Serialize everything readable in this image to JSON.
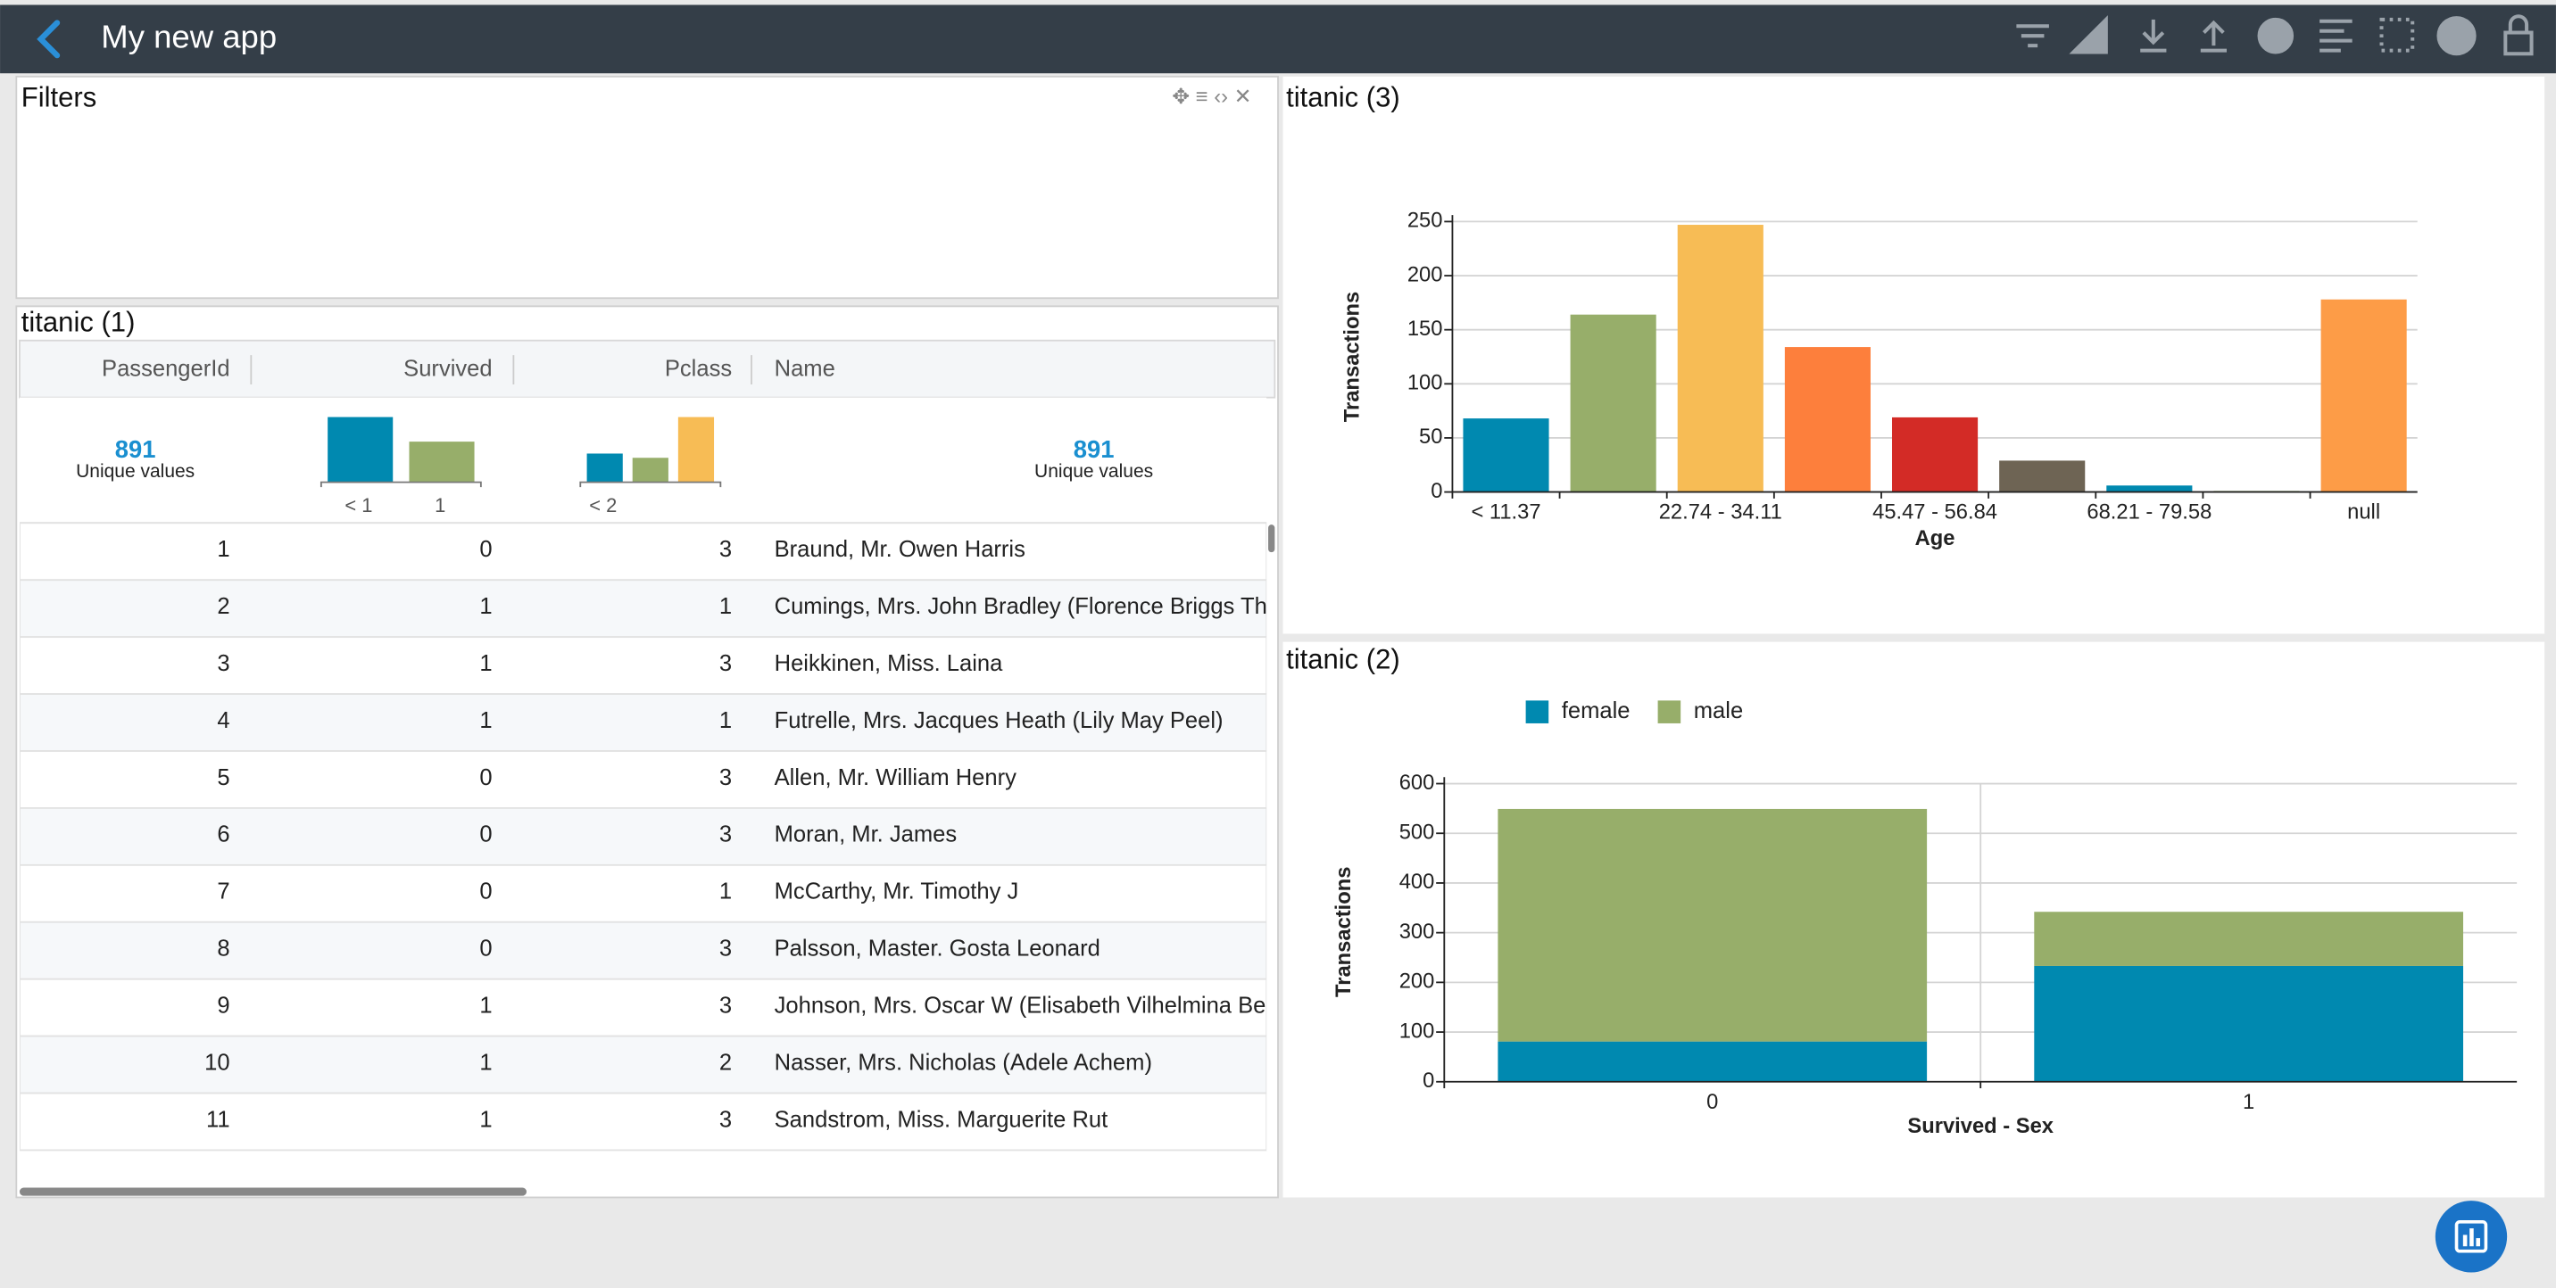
{
  "header": {
    "title": "My new app"
  },
  "filters": {
    "title": "Filters"
  },
  "table": {
    "title": "titanic (1)",
    "columns": [
      "PassengerId",
      "Survived",
      "Pclass",
      "Name"
    ],
    "summary": {
      "passenger_id": {
        "count": 891,
        "label": "Unique values"
      },
      "survived": {
        "values": [
          549,
          342
        ],
        "colors": [
          "#0089b0",
          "#97ae6a"
        ],
        "labels": [
          "< 1",
          "1"
        ]
      },
      "pclass": {
        "values": [
          216,
          184,
          491
        ],
        "colors": [
          "#0089b0",
          "#97ae6a",
          "#f7bc55"
        ],
        "labels": [
          "< 2"
        ]
      },
      "name": {
        "count": 891,
        "label": "Unique values"
      }
    },
    "rows": [
      [
        1,
        0,
        3,
        "Braund, Mr. Owen Harris"
      ],
      [
        2,
        1,
        1,
        "Cumings, Mrs. John Bradley (Florence Briggs Thayer)"
      ],
      [
        3,
        1,
        3,
        "Heikkinen, Miss. Laina"
      ],
      [
        4,
        1,
        1,
        "Futrelle, Mrs. Jacques Heath (Lily May Peel)"
      ],
      [
        5,
        0,
        3,
        "Allen, Mr. William Henry"
      ],
      [
        6,
        0,
        3,
        "Moran, Mr. James"
      ],
      [
        7,
        0,
        1,
        "McCarthy, Mr. Timothy J"
      ],
      [
        8,
        0,
        3,
        "Palsson, Master. Gosta Leonard"
      ],
      [
        9,
        1,
        3,
        "Johnson, Mrs. Oscar W (Elisabeth Vilhelmina Berg)"
      ],
      [
        10,
        1,
        2,
        "Nasser, Mrs. Nicholas (Adele Achem)"
      ],
      [
        11,
        1,
        3,
        "Sandstrom, Miss. Marguerite Rut"
      ]
    ]
  },
  "chart_data": [
    {
      "type": "bar",
      "title": "titanic (3)",
      "x_label": "Age",
      "y_label": "Transactions",
      "categories": [
        "< 11.37",
        null,
        "22.74 - 34.11",
        null,
        "45.47 - 56.84",
        null,
        "68.21 - 79.58",
        null,
        "null"
      ],
      "values": [
        68,
        164,
        247,
        134,
        69,
        29,
        6,
        1,
        178
      ],
      "colors": [
        "#0089b0",
        "#97ae6a",
        "#f7bc55",
        "#fd7f3c",
        "#d32b26",
        "#6e6454",
        "#0089b0",
        "#97ae6a",
        "#fd9c47"
      ],
      "ylim": [
        0,
        250
      ],
      "yticks": [
        0,
        50,
        100,
        150,
        200,
        250
      ],
      "grid": true
    },
    {
      "type": "stacked-bar",
      "title": "titanic (2)",
      "x_label": "Survived - Sex",
      "y_label": "Transactions",
      "categories": [
        "0",
        "1"
      ],
      "series": [
        {
          "name": "female",
          "color": "#0089b0",
          "values": [
            81,
            233
          ]
        },
        {
          "name": "male",
          "color": "#97ae6a",
          "values": [
            468,
            109
          ]
        }
      ],
      "ylim": [
        0,
        600
      ],
      "yticks": [
        0,
        100,
        200,
        300,
        400,
        500,
        600
      ],
      "grid": true,
      "legend": "top-left"
    }
  ]
}
